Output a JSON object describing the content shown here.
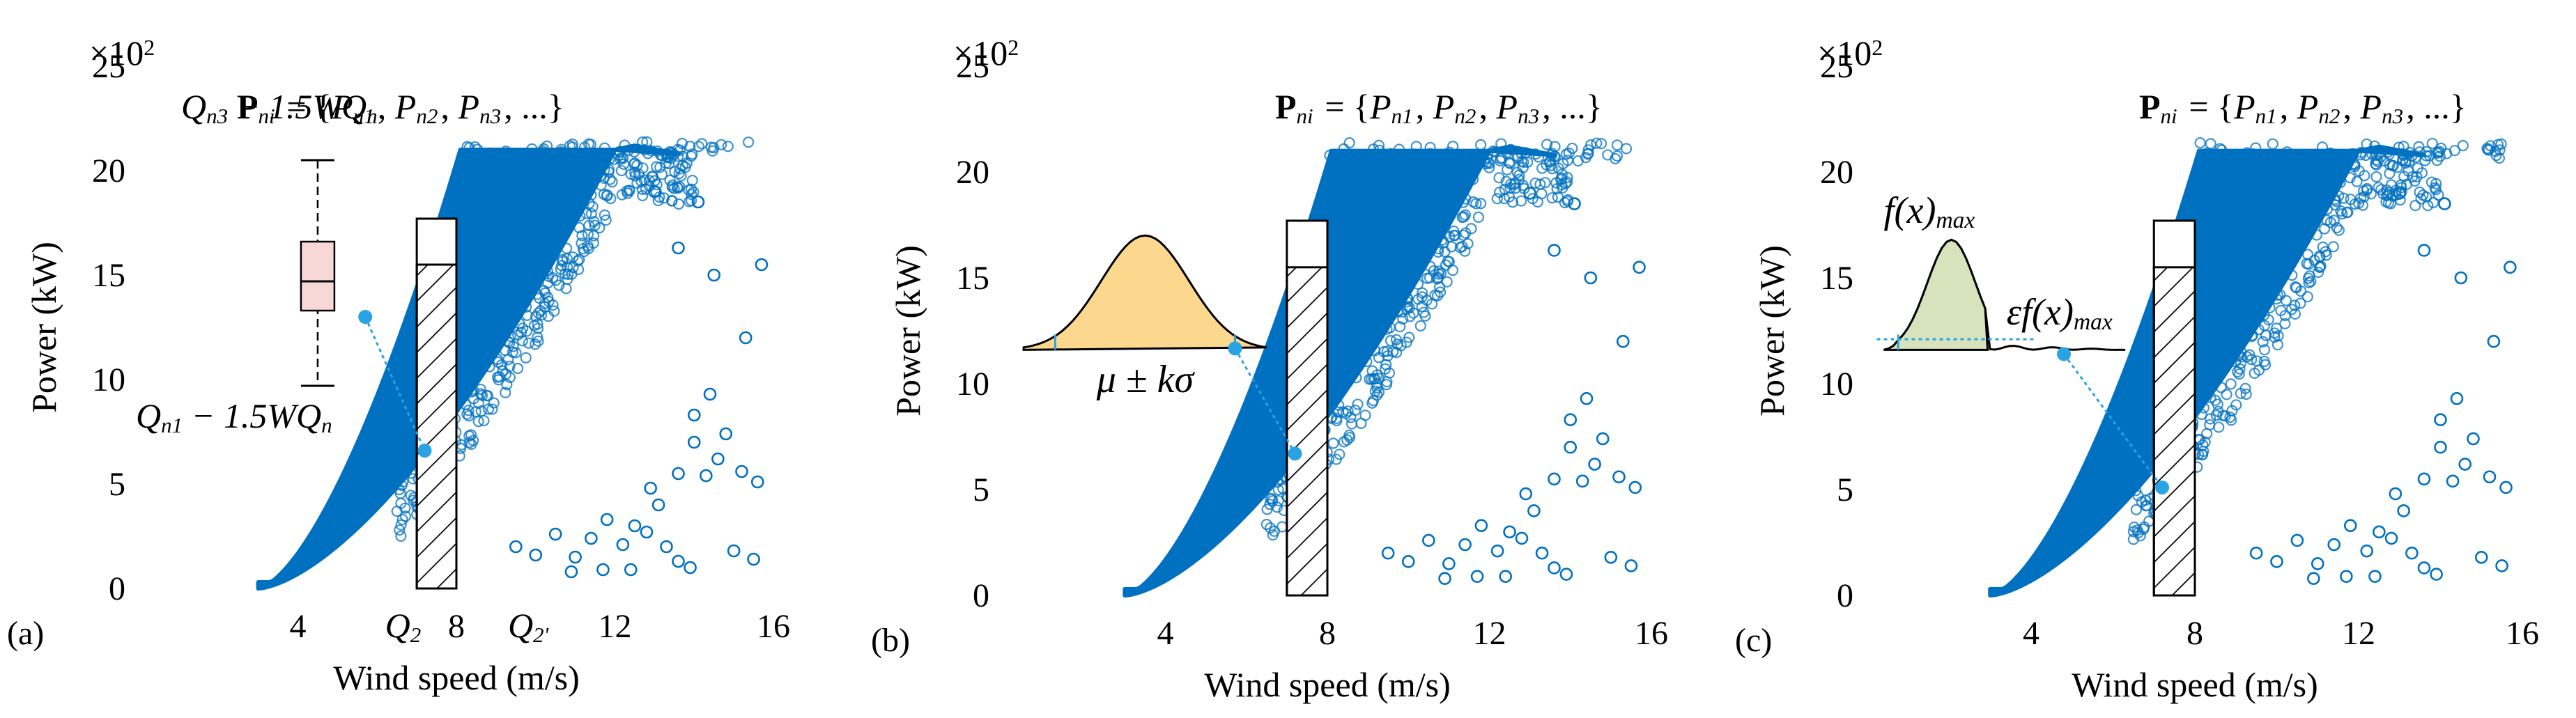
{
  "chart_data": [
    {
      "type": "scatter",
      "panel_label": "(a)",
      "xlabel": "Wind speed (m/s)",
      "ylabel": "Power (kW)",
      "y_multiplier": "×10",
      "y_multiplier_exp": "2",
      "xlim": [
        0,
        16
      ],
      "ylim": [
        0,
        25
      ],
      "xticks": [
        4,
        8,
        12,
        16
      ],
      "yticks": [
        0,
        5,
        10,
        15,
        20,
        25
      ],
      "rated_power": 21,
      "cut_in_speed": 3,
      "bin_interval": [
        7,
        8
      ],
      "marker_color": "#0070c0",
      "formula_set": "P_ni = {P_n1, P_n2, P_n3, ...}",
      "method": "boxplot",
      "annotations": {
        "upper": "Q_n3 − 1.5WQ_n",
        "lower": "Q_n1 − 1.5WQ_n",
        "q_left": "Q_2",
        "q_right": "Q_2'"
      },
      "box_color": "#f8d7d7",
      "outliers": [
        [
          9.5,
          2.0
        ],
        [
          10.0,
          1.6
        ],
        [
          10.5,
          2.6
        ],
        [
          11.0,
          1.5
        ],
        [
          11.4,
          2.4
        ],
        [
          11.8,
          3.3
        ],
        [
          12.2,
          2.1
        ],
        [
          12.5,
          3.0
        ],
        [
          12.8,
          2.7
        ],
        [
          13.3,
          2.0
        ],
        [
          13.6,
          1.3
        ],
        [
          13.9,
          1.0
        ],
        [
          13.1,
          4.0
        ],
        [
          13.6,
          5.5
        ],
        [
          14.0,
          7.0
        ],
        [
          14.3,
          5.4
        ],
        [
          14.6,
          6.2
        ],
        [
          14.0,
          8.3
        ],
        [
          14.4,
          9.3
        ],
        [
          14.8,
          7.4
        ],
        [
          15.2,
          5.6
        ],
        [
          15.6,
          5.1
        ],
        [
          15.0,
          1.8
        ],
        [
          15.5,
          1.4
        ],
        [
          14.5,
          15.0
        ],
        [
          15.3,
          12.0
        ],
        [
          15.7,
          15.5
        ],
        [
          14.1,
          18.5
        ],
        [
          13.6,
          16.3
        ],
        [
          13.0,
          19.0
        ],
        [
          10.9,
          0.8
        ],
        [
          12.4,
          0.9
        ],
        [
          11.7,
          0.9
        ],
        [
          12.9,
          4.8
        ]
      ]
    },
    {
      "type": "scatter",
      "panel_label": "(b)",
      "xlabel": "Wind speed (m/s)",
      "ylabel": "Power (kW)",
      "y_multiplier": "×10",
      "y_multiplier_exp": "2",
      "xlim": [
        0,
        16
      ],
      "ylim": [
        0,
        25
      ],
      "xticks": [
        4,
        8,
        12,
        16
      ],
      "yticks": [
        0,
        5,
        10,
        15,
        20,
        25
      ],
      "rated_power": 21,
      "cut_in_speed": 3,
      "bin_interval": [
        7,
        8
      ],
      "marker_color": "#0070c0",
      "formula_set": "P_ni = {P_n1, P_n2, P_n3, ...}",
      "method": "gaussian",
      "annotations": {
        "band": "μ ± kσ"
      },
      "curve_color": "#fbd88d",
      "outliers": [
        [
          9.5,
          2.0
        ],
        [
          10.0,
          1.6
        ],
        [
          10.5,
          2.6
        ],
        [
          11.0,
          1.5
        ],
        [
          11.4,
          2.4
        ],
        [
          11.8,
          3.3
        ],
        [
          12.2,
          2.1
        ],
        [
          12.5,
          3.0
        ],
        [
          12.8,
          2.7
        ],
        [
          13.3,
          2.0
        ],
        [
          13.6,
          1.3
        ],
        [
          13.9,
          1.0
        ],
        [
          13.1,
          4.0
        ],
        [
          13.6,
          5.5
        ],
        [
          14.0,
          7.0
        ],
        [
          14.3,
          5.4
        ],
        [
          14.6,
          6.2
        ],
        [
          14.0,
          8.3
        ],
        [
          14.4,
          9.3
        ],
        [
          14.8,
          7.4
        ],
        [
          15.2,
          5.6
        ],
        [
          15.6,
          5.1
        ],
        [
          15.0,
          1.8
        ],
        [
          15.5,
          1.4
        ],
        [
          14.5,
          15.0
        ],
        [
          15.3,
          12.0
        ],
        [
          15.7,
          15.5
        ],
        [
          14.1,
          18.5
        ],
        [
          13.6,
          16.3
        ],
        [
          13.0,
          19.0
        ],
        [
          10.9,
          0.8
        ],
        [
          12.4,
          0.9
        ],
        [
          11.7,
          0.9
        ],
        [
          12.9,
          4.8
        ]
      ]
    },
    {
      "type": "scatter",
      "panel_label": "(c)",
      "xlabel": "Wind speed (m/s)",
      "ylabel": "Power (kW)",
      "y_multiplier": "×10",
      "y_multiplier_exp": "2",
      "xlim": [
        0,
        16
      ],
      "ylim": [
        0,
        25
      ],
      "xticks": [
        4,
        8,
        12,
        16
      ],
      "yticks": [
        0,
        5,
        10,
        15,
        20,
        25
      ],
      "rated_power": 21,
      "cut_in_speed": 3,
      "bin_interval": [
        7,
        8
      ],
      "marker_color": "#0070c0",
      "formula_set": "P_ni = {P_n1, P_n2, P_n3, ...}",
      "method": "kde",
      "annotations": {
        "peak": "f(x)_max",
        "threshold": "εf(x)_max"
      },
      "curve_color": "#d6e3bc",
      "outliers": [
        [
          9.5,
          2.0
        ],
        [
          10.0,
          1.6
        ],
        [
          10.5,
          2.6
        ],
        [
          11.0,
          1.5
        ],
        [
          11.4,
          2.4
        ],
        [
          11.8,
          3.3
        ],
        [
          12.2,
          2.1
        ],
        [
          12.5,
          3.0
        ],
        [
          12.8,
          2.7
        ],
        [
          13.3,
          2.0
        ],
        [
          13.6,
          1.3
        ],
        [
          13.9,
          1.0
        ],
        [
          13.1,
          4.0
        ],
        [
          13.6,
          5.5
        ],
        [
          14.0,
          7.0
        ],
        [
          14.3,
          5.4
        ],
        [
          14.6,
          6.2
        ],
        [
          14.0,
          8.3
        ],
        [
          14.4,
          9.3
        ],
        [
          14.8,
          7.4
        ],
        [
          15.2,
          5.6
        ],
        [
          15.6,
          5.1
        ],
        [
          15.0,
          1.8
        ],
        [
          15.5,
          1.4
        ],
        [
          14.5,
          15.0
        ],
        [
          15.3,
          12.0
        ],
        [
          15.7,
          15.5
        ],
        [
          14.1,
          18.5
        ],
        [
          13.6,
          16.3
        ],
        [
          13.0,
          19.0
        ],
        [
          10.9,
          0.8
        ],
        [
          12.4,
          0.9
        ],
        [
          11.7,
          0.9
        ],
        [
          12.9,
          4.8
        ]
      ]
    }
  ]
}
